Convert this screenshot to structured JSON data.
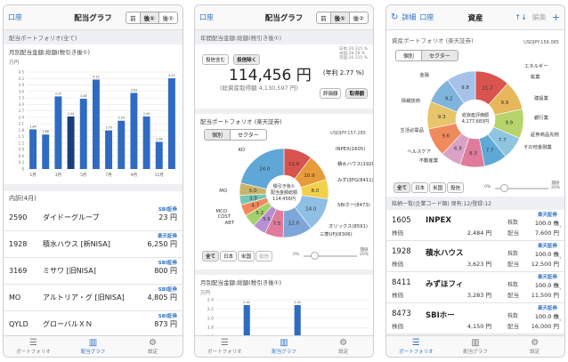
{
  "p1": {
    "back": "口座",
    "title": "配当グラフ",
    "seg": [
      "前",
      "後①",
      "後②"
    ],
    "section": "配当ポートフォリオ(全て)",
    "chart_title": "月別配当金額:総額(税引き後①)",
    "unit": "万円",
    "chart_data": {
      "type": "bar",
      "categories": [
        "1月",
        "2月",
        "3月",
        "4月",
        "5月",
        "6月",
        "7月",
        "8月",
        "9月",
        "10月",
        "11月",
        "12月"
      ],
      "values": [
        1.84,
        1.6,
        3.37,
        2.44,
        3.26,
        4.15,
        1.79,
        2.24,
        3.53,
        2.44,
        1.26,
        4.21
      ],
      "highlight": 3,
      "ylim": [
        0,
        4.5
      ],
      "yticks": [
        "4.5",
        "4.2",
        "3.9",
        "3.6",
        "3.3",
        "3.0",
        "2.7",
        "2.4",
        "2.1",
        "1.8",
        "1.5",
        "1.2",
        "0.9",
        "0.6",
        "0.3",
        "0"
      ],
      "xticks": [
        "1月",
        "3月",
        "5月",
        "7月",
        "9月",
        "11月"
      ]
    },
    "detail_title": "内訳(4月)",
    "rows": [
      {
        "code": "2590",
        "name": "ダイドーグループ",
        "broker": "SBI証券",
        "amount": "23 円"
      },
      {
        "code": "1928",
        "name": "積水ハウス [新NISA]",
        "broker": "楽天証券",
        "amount": "6,250 円"
      },
      {
        "code": "3169",
        "name": "ミサワ [旧NISA]",
        "broker": "SBI証券",
        "amount": "800 円"
      },
      {
        "code": "MO",
        "name": "アルトリア・グ [旧NISA]",
        "broker": "SBI証券",
        "amount": "4,805 円"
      },
      {
        "code": "QYLD",
        "name": "グローバルＸＮ",
        "broker": "SBI証券",
        "amount": "873 円"
      }
    ],
    "tabs": [
      "ポートフォリオ",
      "配当グラフ",
      "設定"
    ]
  },
  "p2": {
    "back": "口座",
    "title": "配当グラフ",
    "seg": [
      "前",
      "後①",
      "後②"
    ],
    "section": "年間配当金額:総額(税引き後①)",
    "chips": [
      "投信含む",
      "投信除く"
    ],
    "total": "114,456 円",
    "sub": "(総資産取得額 4,130,597 円)",
    "yield": "(年利 2.77 %)",
    "rates": [
      "日本:20.315 %",
      "米国:28.28 %",
      "英国:20.315 %"
    ],
    "sort_btns": [
      "評価額",
      "取得額"
    ],
    "pf_title": "配当ポートフォリオ (楽天証券)",
    "tabs_pf": [
      "個別",
      "セクター"
    ],
    "fx": "USDJPY:157.285",
    "center": [
      "税引き後①",
      "配当金額総額",
      "114,456円"
    ],
    "chart_data": {
      "type": "pie",
      "values": [
        11.6,
        10.9,
        8.0,
        14.0,
        12.0,
        7.5,
        5.5,
        5.2,
        4.7,
        3.9,
        5.0,
        24.0
      ],
      "labels": [
        "INPEX(1605)",
        "積水ハウス(1928)",
        "みずほFG(8411)",
        "SBIホー(8473)",
        "オリックス(8591)",
        "三菱UFJ(8306)",
        "",
        "ABT",
        "COST",
        "MCO",
        "MO",
        "KO"
      ]
    },
    "ticks": [
      "14.0",
      "10.9",
      "8.0",
      "5.2",
      "12.0",
      "24.0",
      "11.6"
    ],
    "filters": [
      "全て",
      "日本",
      "米国",
      "投信"
    ],
    "slider": {
      "min": "0%",
      "max": "20%",
      "label": "閾値"
    },
    "month_title": "月別配当金額:総額(税引き後①)",
    "unit": "万円",
    "bars": {
      "type": "bar",
      "values": [
        0,
        0,
        2.41,
        0,
        0,
        0,
        2.41,
        0,
        0,
        0,
        0,
        0
      ],
      "yticks": [
        "2.4",
        "2.2",
        "2.0",
        "1.8",
        "1.6",
        "1.4"
      ]
    },
    "tabs": [
      "ポートフォリオ",
      "配当グラフ",
      "設定"
    ]
  },
  "p3": {
    "nav": [
      "詳細",
      "口座",
      "資産",
      "編集"
    ],
    "section": "資産ポートフォリオ (楽天証券)",
    "fx": "USDJPY:156.065",
    "tabs_pf": [
      "個別",
      "セクター"
    ],
    "center": [
      "総資産評価額",
      "4,177,683円"
    ],
    "chart_data": {
      "type": "pie",
      "values": [
        11.7,
        9.9,
        9.9,
        7.7,
        7.7,
        8.3,
        6.9,
        9.6,
        9.3,
        9.2,
        9.8
      ],
      "labels": [
        "エネルギー",
        "鉱業",
        "建設業",
        "銀行業",
        "証券商品先物",
        "その他金融業",
        "不動産業",
        "ヘルスケア",
        "生活必需品",
        "情報技術",
        "金融"
      ]
    },
    "filters": [
      "全て",
      "日本",
      "米国",
      "投信"
    ],
    "slider": {
      "min": "0%",
      "max": "20%",
      "label": "閾値"
    },
    "list_title": "銘柄一覧(企業コード順) 保有:12/登録:12",
    "stocks": [
      {
        "code": "1605",
        "name": "INPEX",
        "price_l": "株価",
        "price": "2,484 円",
        "shares_l": "株数",
        "shares": "100.0 株",
        "div_l": "配当",
        "div": "7,600 円"
      },
      {
        "code": "1928",
        "name": "積水ハウス",
        "price_l": "株価",
        "price": "3,623 円",
        "shares_l": "株数",
        "shares": "100.0 株",
        "div_l": "配当",
        "div": "12,500 円"
      },
      {
        "code": "8411",
        "name": "みずほフィ",
        "price_l": "株価",
        "price": "3,283 円",
        "shares_l": "株数",
        "shares": "100.0 株",
        "div_l": "配当",
        "div": "11,500 円"
      },
      {
        "code": "8473",
        "name": "SBIホー",
        "price_l": "株価",
        "price": "4,150 円",
        "shares_l": "株数",
        "shares": "100.0 株",
        "div_l": "配当",
        "div": "16,000 円"
      }
    ],
    "brokers": [
      "楽天証券",
      "楽天証券",
      "楽天証券",
      "楽天証券"
    ],
    "tabs": [
      "ポートフォリオ",
      "配当グラフ",
      "設定"
    ]
  }
}
